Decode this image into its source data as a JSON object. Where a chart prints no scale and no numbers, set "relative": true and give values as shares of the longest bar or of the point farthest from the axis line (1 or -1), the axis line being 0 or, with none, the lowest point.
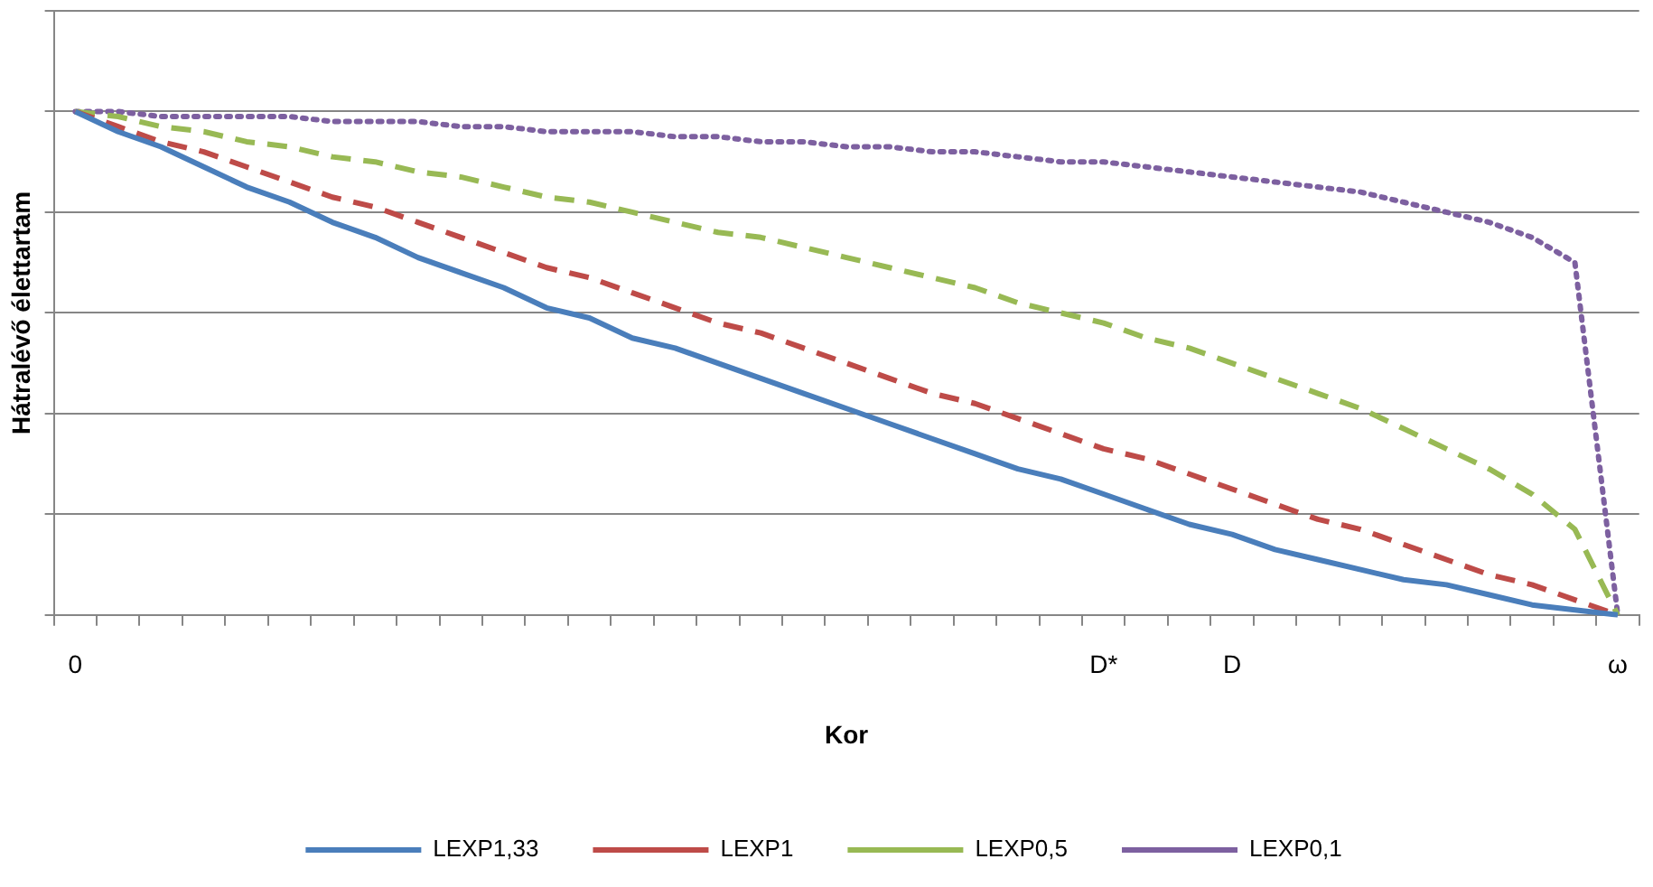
{
  "chart_data": {
    "type": "line",
    "xlabel": "Kor",
    "ylabel": "Hátralévő élettartam",
    "relative": true,
    "grid": "y",
    "legend": "bottom",
    "marker": "none",
    "tick_labels": "x",
    "categories": [
      "0",
      null,
      null,
      null,
      null,
      null,
      null,
      null,
      null,
      null,
      null,
      null,
      null,
      null,
      null,
      null,
      null,
      null,
      null,
      null,
      null,
      null,
      null,
      null,
      "D*",
      null,
      null,
      "D",
      null,
      null,
      null,
      null,
      null,
      null,
      null,
      null,
      "ω"
    ],
    "series": [
      {
        "name": "LEXP1,33",
        "color": "#4a7ebb",
        "line_style": "solid",
        "values": [
          1,
          0.96,
          0.93,
          0.89,
          0.85,
          0.82,
          0.78,
          0.75,
          0.71,
          0.68,
          0.65,
          0.61,
          0.59,
          0.55,
          0.53,
          0.5,
          0.47,
          0.44,
          0.41,
          0.38,
          0.35,
          0.32,
          0.29,
          0.27,
          0.24,
          0.21,
          0.18,
          0.16,
          0.13,
          0.11,
          0.09,
          0.07,
          0.06,
          0.04,
          0.02,
          0.01,
          0
        ]
      },
      {
        "name": "LEXP1",
        "color": "#be4b48",
        "line_style": "dashed",
        "values": [
          1,
          0.97,
          0.94,
          0.92,
          0.89,
          0.86,
          0.83,
          0.81,
          0.78,
          0.75,
          0.72,
          0.69,
          0.67,
          0.64,
          0.61,
          0.58,
          0.56,
          0.53,
          0.5,
          0.47,
          0.44,
          0.42,
          0.39,
          0.36,
          0.33,
          0.31,
          0.28,
          0.25,
          0.22,
          0.19,
          0.17,
          0.14,
          0.11,
          0.08,
          0.06,
          0.03,
          0
        ]
      },
      {
        "name": "LEXP0,5",
        "color": "#98b954",
        "line_style": "dashed",
        "values": [
          1,
          0.99,
          0.97,
          0.96,
          0.94,
          0.93,
          0.91,
          0.9,
          0.88,
          0.87,
          0.85,
          0.83,
          0.82,
          0.8,
          0.78,
          0.76,
          0.75,
          0.73,
          0.71,
          0.69,
          0.67,
          0.65,
          0.62,
          0.6,
          0.58,
          0.55,
          0.53,
          0.5,
          0.47,
          0.44,
          0.41,
          0.37,
          0.33,
          0.29,
          0.24,
          0.17,
          0
        ]
      },
      {
        "name": "LEXP0,1",
        "color": "#7d60a0",
        "line_style": "dotted",
        "values": [
          1,
          1,
          0.99,
          0.99,
          0.99,
          0.99,
          0.98,
          0.98,
          0.98,
          0.97,
          0.97,
          0.96,
          0.96,
          0.96,
          0.95,
          0.95,
          0.94,
          0.94,
          0.93,
          0.93,
          0.92,
          0.92,
          0.91,
          0.9,
          0.9,
          0.89,
          0.88,
          0.87,
          0.86,
          0.85,
          0.84,
          0.82,
          0.8,
          0.78,
          0.75,
          0.7,
          0
        ]
      }
    ]
  }
}
